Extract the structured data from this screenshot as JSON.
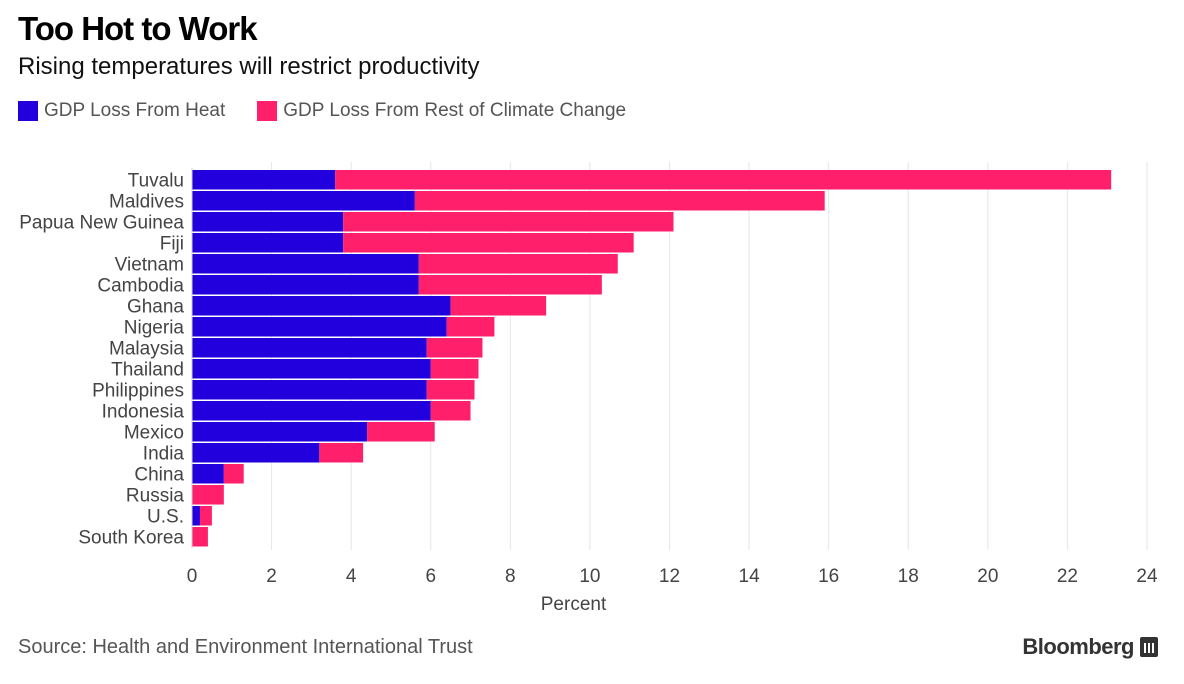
{
  "title": "Too Hot to Work",
  "subtitle": "Rising temperatures will restrict productivity",
  "colors": {
    "heat": "#2200dd",
    "rest": "#ff1f6b",
    "grid": "#e6e6e6"
  },
  "legend": [
    {
      "label": "GDP Loss From Heat",
      "color": "#2200dd"
    },
    {
      "label": "GDP Loss From Rest of Climate Change",
      "color": "#ff1f6b"
    }
  ],
  "footer": {
    "source": "Source: Health and Environment International Trust",
    "brand": "Bloomberg",
    "brand_icon": "bloomberg-chart-icon"
  },
  "chart_data": {
    "type": "bar",
    "orientation": "horizontal",
    "stacked": true,
    "categories": [
      "Tuvalu",
      "Maldives",
      "Papua New Guinea",
      "Fiji",
      "Vietnam",
      "Cambodia",
      "Ghana",
      "Nigeria",
      "Malaysia",
      "Thailand",
      "Philippines",
      "Indonesia",
      "Mexico",
      "India",
      "China",
      "Russia",
      "U.S.",
      "South Korea"
    ],
    "series": [
      {
        "name": "GDP Loss From Heat",
        "values": [
          3.6,
          5.6,
          3.8,
          3.8,
          5.7,
          5.7,
          6.5,
          6.4,
          5.9,
          6.0,
          5.9,
          6.0,
          4.4,
          3.2,
          0.8,
          0.0,
          0.2,
          0.0
        ]
      },
      {
        "name": "GDP Loss From Rest of Climate Change",
        "values": [
          19.5,
          10.3,
          8.3,
          7.3,
          5.0,
          4.6,
          2.4,
          1.2,
          1.4,
          1.2,
          1.2,
          1.0,
          1.7,
          1.1,
          0.5,
          0.8,
          0.3,
          0.4
        ]
      }
    ],
    "xlabel": "Percent",
    "ylabel": "",
    "xlim": [
      0,
      24
    ],
    "xticks": [
      0,
      2,
      4,
      6,
      8,
      10,
      12,
      14,
      16,
      18,
      20,
      22,
      24
    ],
    "grid": true
  }
}
